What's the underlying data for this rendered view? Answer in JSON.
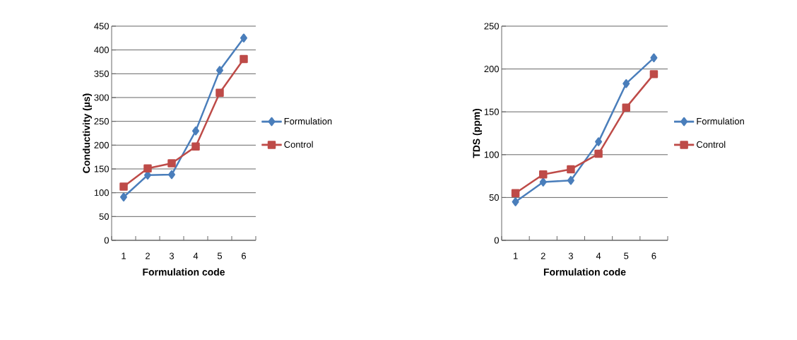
{
  "chart_data": [
    {
      "type": "line",
      "categories": [
        "1",
        "2",
        "3",
        "4",
        "5",
        "6"
      ],
      "xlabel": "Formulation code",
      "ylabel": "Conductivity (µs)",
      "ylim": [
        0,
        450
      ],
      "yticks": [
        0,
        50,
        100,
        150,
        200,
        250,
        300,
        350,
        400,
        450
      ],
      "grid": "y",
      "legend": "right",
      "line_style": "solid",
      "series": [
        {
          "name": "Formulation",
          "color": "#4a7ebb",
          "marker": "diamond",
          "values": [
            91,
            137,
            138,
            230,
            357,
            425
          ]
        },
        {
          "name": "Control",
          "color": "#be4b48",
          "marker": "square",
          "values": [
            113,
            151,
            162,
            197,
            310,
            381
          ]
        }
      ]
    },
    {
      "type": "line",
      "categories": [
        "1",
        "2",
        "3",
        "4",
        "5",
        "6"
      ],
      "xlabel": "Formulation code",
      "ylabel": "TDS (ppm)",
      "ylim": [
        0,
        250
      ],
      "yticks": [
        0,
        50,
        100,
        150,
        200,
        250
      ],
      "grid": "y",
      "legend": "right",
      "line_style": "solid",
      "series": [
        {
          "name": "Formulation",
          "color": "#4a7ebb",
          "marker": "diamond",
          "values": [
            45,
            68,
            70,
            115,
            183,
            213
          ]
        },
        {
          "name": "Control",
          "color": "#be4b48",
          "marker": "square",
          "values": [
            55,
            77,
            83,
            101,
            155,
            194
          ]
        }
      ]
    }
  ]
}
